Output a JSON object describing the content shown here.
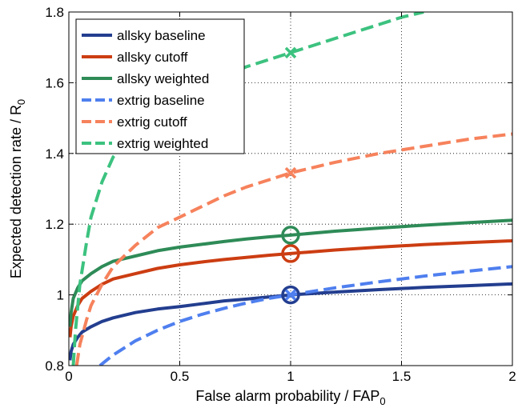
{
  "chart_data": {
    "type": "line",
    "title": "",
    "xlabel": "False alarm probability / FAP",
    "xlabel_sub": "0",
    "ylabel": "Expected detection rate / R",
    "ylabel_sub": "0",
    "xlim": [
      0,
      2
    ],
    "ylim": [
      0.8,
      1.8
    ],
    "x_ticks": [
      0,
      0.5,
      1,
      1.5,
      2
    ],
    "x_tick_labels": [
      "0",
      "0.5",
      "1",
      "1.5",
      "2"
    ],
    "y_ticks": [
      0.8,
      1,
      1.2,
      1.4,
      1.6,
      1.8
    ],
    "y_tick_labels": [
      "0.8",
      "1",
      "1.2",
      "1.4",
      "1.6",
      "1.8"
    ],
    "grid": true,
    "legend_position": "top-left",
    "series": [
      {
        "name": "allsky baseline",
        "color": "#233e8f",
        "style": "solid",
        "marker": "circle",
        "x": [
          0.005,
          0.01,
          0.02,
          0.04,
          0.06,
          0.1,
          0.15,
          0.2,
          0.3,
          0.4,
          0.5,
          0.6,
          0.7,
          0.8,
          0.9,
          1.0,
          1.2,
          1.4,
          1.6,
          1.8,
          2.0
        ],
        "y": [
          0.815,
          0.84,
          0.86,
          0.88,
          0.895,
          0.91,
          0.925,
          0.935,
          0.95,
          0.96,
          0.967,
          0.975,
          0.983,
          0.988,
          0.994,
          1.0,
          1.008,
          1.015,
          1.021,
          1.026,
          1.031
        ]
      },
      {
        "name": "allsky cutoff",
        "color": "#cc3d12",
        "style": "solid",
        "marker": "circle",
        "x": [
          0.005,
          0.01,
          0.02,
          0.04,
          0.06,
          0.1,
          0.15,
          0.2,
          0.3,
          0.4,
          0.5,
          0.6,
          0.7,
          0.8,
          0.9,
          1.0,
          1.2,
          1.4,
          1.6,
          1.8,
          2.0
        ],
        "y": [
          0.88,
          0.91,
          0.94,
          0.97,
          0.99,
          1.01,
          1.03,
          1.045,
          1.06,
          1.075,
          1.085,
          1.093,
          1.1,
          1.106,
          1.112,
          1.117,
          1.127,
          1.135,
          1.142,
          1.148,
          1.153
        ]
      },
      {
        "name": "allsky weighted",
        "color": "#2e8b57",
        "style": "solid",
        "marker": "circle",
        "x": [
          0.005,
          0.01,
          0.02,
          0.04,
          0.06,
          0.1,
          0.15,
          0.2,
          0.3,
          0.4,
          0.5,
          0.6,
          0.7,
          0.8,
          0.9,
          1.0,
          1.2,
          1.4,
          1.6,
          1.8,
          2.0
        ],
        "y": [
          0.91,
          0.95,
          0.99,
          1.02,
          1.04,
          1.06,
          1.08,
          1.095,
          1.11,
          1.125,
          1.135,
          1.143,
          1.151,
          1.158,
          1.164,
          1.169,
          1.18,
          1.189,
          1.197,
          1.204,
          1.211
        ]
      },
      {
        "name": "extrig baseline",
        "color": "#4f7fef",
        "style": "dashed",
        "marker": "x",
        "x": [
          0.14,
          0.2,
          0.3,
          0.4,
          0.5,
          0.6,
          0.7,
          0.8,
          0.9,
          1.0,
          1.2,
          1.4,
          1.6,
          1.8,
          2.0
        ],
        "y": [
          0.8,
          0.83,
          0.87,
          0.9,
          0.925,
          0.945,
          0.962,
          0.977,
          0.99,
          1.0,
          1.02,
          1.037,
          1.053,
          1.067,
          1.08
        ]
      },
      {
        "name": "extrig cutoff",
        "color": "#f6825c",
        "style": "dashed",
        "marker": "x",
        "x": [
          0.035,
          0.05,
          0.08,
          0.1,
          0.15,
          0.2,
          0.3,
          0.4,
          0.5,
          0.6,
          0.7,
          0.8,
          0.9,
          1.0,
          1.2,
          1.4,
          1.6,
          1.8,
          2.0
        ],
        "y": [
          0.8,
          0.86,
          0.93,
          0.97,
          1.03,
          1.08,
          1.14,
          1.19,
          1.22,
          1.25,
          1.28,
          1.305,
          1.325,
          1.345,
          1.375,
          1.4,
          1.42,
          1.44,
          1.455
        ]
      },
      {
        "name": "extrig weighted",
        "color": "#3cc27f",
        "style": "dashed",
        "marker": "x",
        "x": [
          0.02,
          0.03,
          0.05,
          0.08,
          0.1,
          0.15,
          0.2,
          0.3,
          0.4,
          0.5,
          0.6,
          0.7,
          0.8,
          0.9,
          1.0,
          1.1,
          1.2,
          1.3,
          1.4,
          1.5,
          1.6
        ],
        "y": [
          0.8,
          0.9,
          1.03,
          1.15,
          1.22,
          1.32,
          1.39,
          1.46,
          1.51,
          1.55,
          1.59,
          1.62,
          1.645,
          1.665,
          1.685,
          1.705,
          1.725,
          1.745,
          1.765,
          1.785,
          1.8
        ]
      }
    ]
  }
}
